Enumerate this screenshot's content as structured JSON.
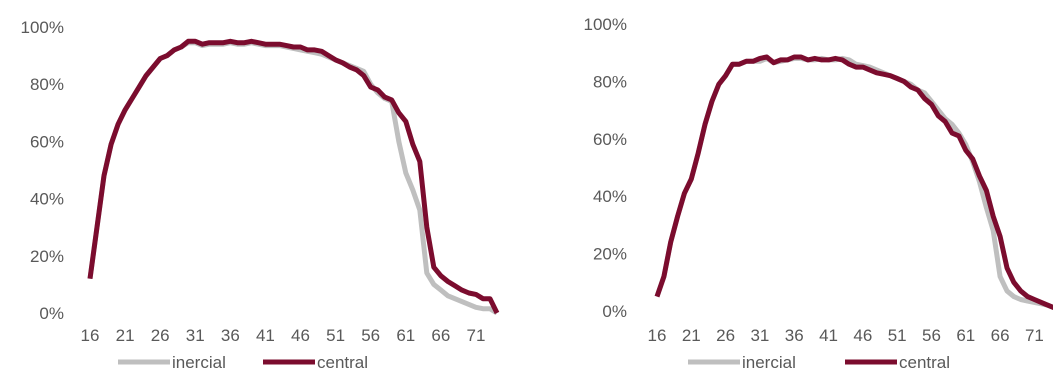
{
  "colors": {
    "inercial": "#BFBFBF",
    "central": "#7B0C2E",
    "text": "#595959"
  },
  "chart_data": [
    {
      "type": "line",
      "title": "",
      "xlabel": "",
      "ylabel": "",
      "ylim": [
        0,
        1
      ],
      "y_ticks": [
        "0%",
        "20%",
        "40%",
        "60%",
        "80%",
        "100%"
      ],
      "x": [
        16,
        17,
        18,
        19,
        20,
        21,
        22,
        23,
        24,
        25,
        26,
        27,
        28,
        29,
        30,
        31,
        32,
        33,
        34,
        35,
        36,
        37,
        38,
        39,
        40,
        41,
        42,
        43,
        44,
        45,
        46,
        47,
        48,
        49,
        50,
        51,
        52,
        53,
        54,
        55,
        56,
        57,
        58,
        59,
        60,
        61,
        62,
        63,
        64,
        65,
        66,
        67,
        68,
        69,
        70,
        71,
        72,
        73,
        74
      ],
      "x_ticks": [
        "16",
        "21",
        "26",
        "31",
        "36",
        "41",
        "46",
        "51",
        "56",
        "61",
        "66",
        "71"
      ],
      "grid": false,
      "legend_position": "bottom",
      "series": [
        {
          "name": "inercial",
          "values": [
            0.12,
            0.3,
            0.48,
            0.59,
            0.66,
            0.71,
            0.75,
            0.79,
            0.83,
            0.86,
            0.89,
            0.9,
            0.92,
            0.93,
            0.945,
            0.945,
            0.935,
            0.94,
            0.94,
            0.94,
            0.945,
            0.94,
            0.94,
            0.945,
            0.94,
            0.935,
            0.935,
            0.935,
            0.93,
            0.925,
            0.92,
            0.915,
            0.91,
            0.905,
            0.895,
            0.885,
            0.875,
            0.865,
            0.855,
            0.845,
            0.8,
            0.77,
            0.75,
            0.74,
            0.6,
            0.49,
            0.43,
            0.36,
            0.14,
            0.1,
            0.08,
            0.06,
            0.05,
            0.04,
            0.03,
            0.02,
            0.015,
            0.015,
            0.0
          ]
        },
        {
          "name": "central",
          "values": [
            0.12,
            0.3,
            0.48,
            0.59,
            0.66,
            0.71,
            0.75,
            0.79,
            0.83,
            0.86,
            0.89,
            0.9,
            0.92,
            0.93,
            0.95,
            0.95,
            0.94,
            0.945,
            0.945,
            0.945,
            0.95,
            0.945,
            0.945,
            0.95,
            0.945,
            0.94,
            0.94,
            0.94,
            0.935,
            0.93,
            0.93,
            0.92,
            0.92,
            0.915,
            0.9,
            0.885,
            0.875,
            0.86,
            0.85,
            0.83,
            0.79,
            0.78,
            0.755,
            0.745,
            0.7,
            0.67,
            0.59,
            0.53,
            0.3,
            0.16,
            0.13,
            0.11,
            0.095,
            0.08,
            0.07,
            0.065,
            0.05,
            0.05,
            0.0
          ]
        }
      ]
    },
    {
      "type": "line",
      "title": "",
      "xlabel": "",
      "ylabel": "",
      "ylim": [
        0,
        1
      ],
      "y_ticks": [
        "0%",
        "20%",
        "40%",
        "60%",
        "80%",
        "100%"
      ],
      "x": [
        16,
        17,
        18,
        19,
        20,
        21,
        22,
        23,
        24,
        25,
        26,
        27,
        28,
        29,
        30,
        31,
        32,
        33,
        34,
        35,
        36,
        37,
        38,
        39,
        40,
        41,
        42,
        43,
        44,
        45,
        46,
        47,
        48,
        49,
        50,
        51,
        52,
        53,
        54,
        55,
        56,
        57,
        58,
        59,
        60,
        61,
        62,
        63,
        64,
        65,
        66,
        67,
        68,
        69,
        70,
        71,
        72,
        73,
        74
      ],
      "x_ticks": [
        "16",
        "21",
        "26",
        "31",
        "36",
        "41",
        "46",
        "51",
        "56",
        "61",
        "66",
        "71"
      ],
      "grid": false,
      "legend_position": "bottom",
      "series": [
        {
          "name": "inercial",
          "values": [
            0.05,
            0.12,
            0.24,
            0.33,
            0.41,
            0.46,
            0.55,
            0.65,
            0.73,
            0.79,
            0.82,
            0.86,
            0.86,
            0.87,
            0.87,
            0.87,
            0.88,
            0.865,
            0.87,
            0.875,
            0.88,
            0.88,
            0.875,
            0.875,
            0.88,
            0.875,
            0.875,
            0.88,
            0.875,
            0.86,
            0.855,
            0.85,
            0.84,
            0.83,
            0.82,
            0.81,
            0.8,
            0.79,
            0.77,
            0.76,
            0.73,
            0.7,
            0.67,
            0.65,
            0.62,
            0.58,
            0.52,
            0.45,
            0.36,
            0.28,
            0.12,
            0.07,
            0.05,
            0.04,
            0.035,
            0.03,
            0.025,
            0.02,
            0.01
          ]
        },
        {
          "name": "central",
          "values": [
            0.05,
            0.12,
            0.24,
            0.33,
            0.41,
            0.46,
            0.55,
            0.65,
            0.73,
            0.79,
            0.82,
            0.86,
            0.86,
            0.87,
            0.87,
            0.88,
            0.885,
            0.865,
            0.875,
            0.875,
            0.885,
            0.885,
            0.875,
            0.88,
            0.875,
            0.875,
            0.88,
            0.875,
            0.86,
            0.85,
            0.85,
            0.84,
            0.83,
            0.825,
            0.82,
            0.81,
            0.8,
            0.78,
            0.77,
            0.74,
            0.72,
            0.68,
            0.66,
            0.62,
            0.61,
            0.56,
            0.53,
            0.47,
            0.42,
            0.33,
            0.26,
            0.15,
            0.1,
            0.07,
            0.05,
            0.04,
            0.03,
            0.02,
            0.01
          ]
        }
      ]
    }
  ]
}
